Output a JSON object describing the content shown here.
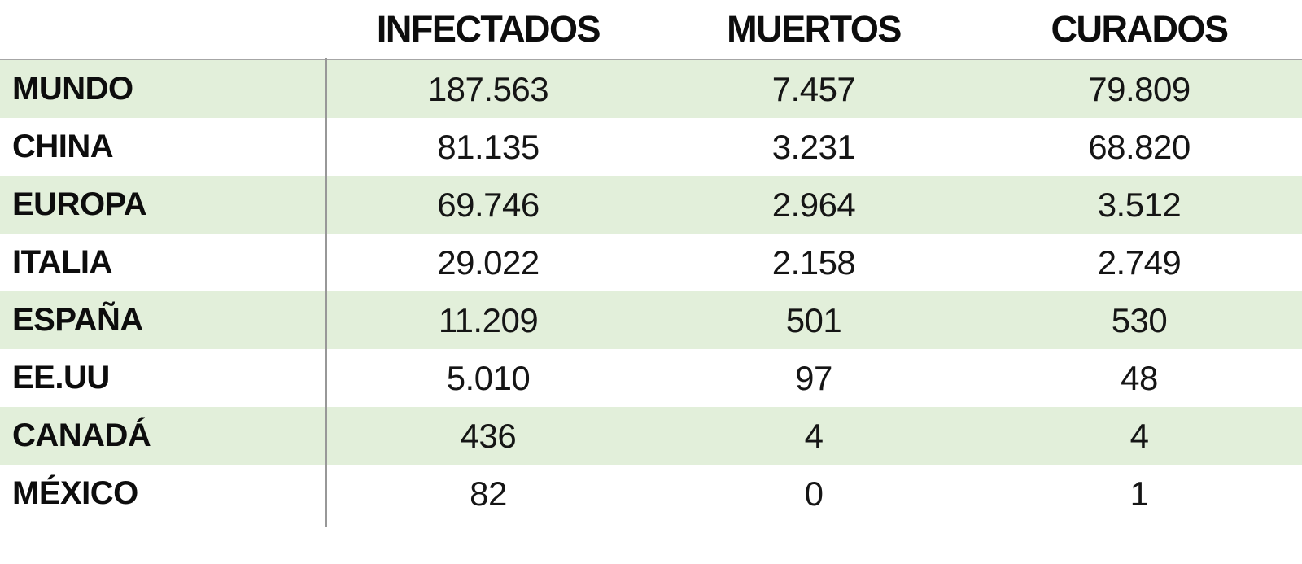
{
  "table": {
    "headers": [
      "INFECTADOS",
      "MUERTOS",
      "CURADOS"
    ],
    "rows": [
      {
        "label": "MUNDO",
        "values": [
          "187.563",
          "7.457",
          "79.809"
        ]
      },
      {
        "label": "CHINA",
        "values": [
          "81.135",
          "3.231",
          "68.820"
        ]
      },
      {
        "label": "EUROPA",
        "values": [
          "69.746",
          "2.964",
          "3.512"
        ]
      },
      {
        "label": "ITALIA",
        "values": [
          "29.022",
          "2.158",
          "2.749"
        ]
      },
      {
        "label": "ESPAÑA",
        "values": [
          "11.209",
          "501",
          "530"
        ]
      },
      {
        "label": "EE.UU",
        "values": [
          "5.010",
          "97",
          "48"
        ]
      },
      {
        "label": "CANADÁ",
        "values": [
          "436",
          "4",
          "4"
        ]
      },
      {
        "label": "MÉXICO",
        "values": [
          "82",
          "0",
          "1"
        ]
      }
    ]
  },
  "colors": {
    "stripe": "#e2efda",
    "border_top": "#a6a6a6",
    "divider": "#989898",
    "text": "#111111"
  },
  "chart_data": {
    "type": "table",
    "title": "",
    "columns": [
      "INFECTADOS",
      "MUERTOS",
      "CURADOS"
    ],
    "categories": [
      "MUNDO",
      "CHINA",
      "EUROPA",
      "ITALIA",
      "ESPAÑA",
      "EE.UU",
      "CANADÁ",
      "MÉXICO"
    ],
    "series": [
      {
        "name": "INFECTADOS",
        "values": [
          187563,
          81135,
          69746,
          29022,
          11209,
          5010,
          436,
          82
        ]
      },
      {
        "name": "MUERTOS",
        "values": [
          7457,
          3231,
          2964,
          2158,
          501,
          97,
          4,
          0
        ]
      },
      {
        "name": "CURADOS",
        "values": [
          79809,
          68820,
          3512,
          2749,
          530,
          48,
          4,
          1
        ]
      }
    ],
    "layout_hints": {
      "number_format": "es-ES thousands separator (dot)",
      "striped_rows": "odd rows light green",
      "label_column_divider": true,
      "grid": "off"
    }
  }
}
